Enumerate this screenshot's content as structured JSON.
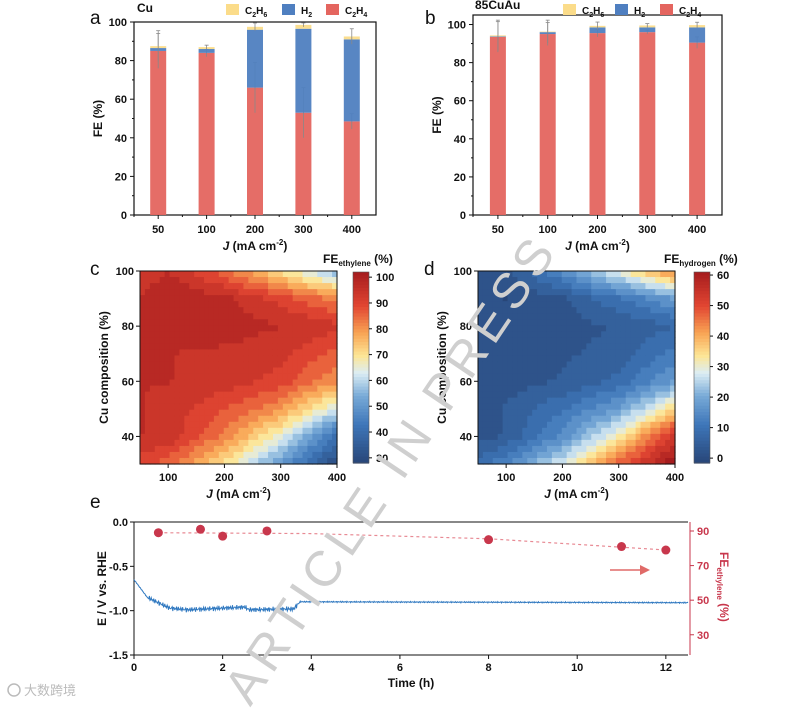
{
  "colors": {
    "c2h4": "#e4655f",
    "h2": "#4f7fc0",
    "c2h6": "#fbdc8a",
    "fe_red": "#c8374c",
    "line_blue": "#2f78c0"
  },
  "watermark": "ARTICLE IN PRESS",
  "logo_text": "大数跨境",
  "chart_data": [
    {
      "panel": "a",
      "type": "bar",
      "stacked": true,
      "title": "Cu",
      "categories": [
        "50",
        "100",
        "200",
        "300",
        "400"
      ],
      "xlabel_italic": "J",
      "xlabel_rest": " (mA cm",
      "xlabel_sup": "-2",
      "xlabel_end": ")",
      "ylabel": "FE (%)",
      "ylim": [
        0,
        100
      ],
      "yticks": [
        0,
        20,
        40,
        60,
        80,
        100
      ],
      "legend": [
        {
          "key": "c2h6",
          "main": "C",
          "s1": "2",
          "mid": "H",
          "s2": "6"
        },
        {
          "key": "h2",
          "main": "H",
          "s1": "2",
          "mid": "",
          "s2": ""
        },
        {
          "key": "c2h4",
          "main": "C",
          "s1": "2",
          "mid": "H",
          "s2": "4"
        }
      ],
      "series": [
        {
          "name": "C2H4",
          "key": "c2h4",
          "values": [
            85,
            84,
            66,
            53,
            48.5
          ],
          "err": [
            9,
            2,
            13,
            13,
            4
          ]
        },
        {
          "name": "H2",
          "key": "h2",
          "values": [
            1.5,
            2,
            30,
            43.5,
            42.5
          ],
          "err": [
            0,
            0,
            0,
            0,
            0
          ]
        },
        {
          "name": "C2H6",
          "key": "c2h6",
          "values": [
            1,
            1,
            1.5,
            2,
            1.5
          ],
          "err": [
            8,
            1,
            2,
            1,
            4
          ]
        }
      ]
    },
    {
      "panel": "b",
      "type": "bar",
      "stacked": true,
      "title": "85CuAu",
      "categories": [
        "50",
        "100",
        "200",
        "300",
        "400"
      ],
      "xlabel_italic": "J",
      "xlabel_rest": " (mA cm",
      "xlabel_sup": "-2",
      "xlabel_end": ")",
      "ylabel": "FE (%)",
      "ylim": [
        0,
        105
      ],
      "yticks": [
        0,
        20,
        40,
        60,
        80,
        100
      ],
      "legend": [
        {
          "key": "c2h6",
          "main": "C",
          "s1": "2",
          "mid": "H",
          "s2": "6"
        },
        {
          "key": "h2",
          "main": "H",
          "s1": "2",
          "mid": "",
          "s2": ""
        },
        {
          "key": "c2h4",
          "main": "C",
          "s1": "2",
          "mid": "H",
          "s2": "4"
        }
      ],
      "series": [
        {
          "name": "C2H4",
          "key": "c2h4",
          "values": [
            93.5,
            95,
            95.5,
            96,
            90.5
          ],
          "err": [
            8,
            6,
            2,
            1,
            3
          ]
        },
        {
          "name": "H2",
          "key": "h2",
          "values": [
            0.3,
            1,
            3,
            2.5,
            8
          ],
          "err": [
            0,
            0,
            0,
            0,
            0
          ]
        },
        {
          "name": "C2H6",
          "key": "c2h6",
          "values": [
            0.5,
            0.3,
            0.8,
            1,
            1.2
          ],
          "err": [
            8,
            6,
            2,
            1,
            1.5
          ]
        }
      ]
    },
    {
      "panel": "c",
      "type": "heatmap",
      "style": "contour",
      "xlabel_italic": "J",
      "xlabel_rest": " (mA cm",
      "xlabel_sup": "-2",
      "xlabel_end": ")",
      "ylabel": "Cu composition (%)",
      "colorbar_title": {
        "main": "FE",
        "sub": "ethylene",
        "end": " (%)"
      },
      "x": [
        50,
        100,
        200,
        300,
        400
      ],
      "y": [
        30,
        40,
        50,
        60,
        70,
        80,
        90,
        100
      ],
      "xlim": [
        50,
        400
      ],
      "ylim": [
        30,
        100
      ],
      "xticks": [
        100,
        200,
        300,
        400
      ],
      "yticks": [
        40,
        60,
        80,
        100
      ],
      "zlim": [
        28,
        102
      ],
      "zticks": [
        30,
        40,
        50,
        60,
        70,
        80,
        90,
        100
      ],
      "z": [
        [
          90,
          85,
          70,
          50,
          30
        ],
        [
          96,
          95,
          82,
          65,
          40
        ],
        [
          96,
          94,
          88,
          80,
          62
        ],
        [
          96,
          96,
          94,
          90,
          80
        ],
        [
          96,
          96,
          95,
          93,
          86
        ],
        [
          96,
          97,
          98,
          96,
          93
        ],
        [
          96,
          100,
          97,
          90,
          82
        ],
        [
          92,
          96,
          85,
          70,
          55
        ]
      ]
    },
    {
      "panel": "d",
      "type": "heatmap",
      "style": "contour",
      "xlabel_italic": "J",
      "xlabel_rest": " (mA cm",
      "xlabel_sup": "-2",
      "xlabel_end": ")",
      "ylabel": "Cu composition (%)",
      "colorbar_title": {
        "main": "FE",
        "sub": "hydrogen",
        "end": " (%)"
      },
      "x": [
        50,
        100,
        200,
        300,
        400
      ],
      "y": [
        30,
        40,
        50,
        60,
        70,
        80,
        90,
        100
      ],
      "xlim": [
        50,
        400
      ],
      "ylim": [
        30,
        100
      ],
      "xticks": [
        100,
        200,
        300,
        400
      ],
      "yticks": [
        40,
        60,
        80,
        100
      ],
      "zlim": [
        -1.6,
        61
      ],
      "zticks": [
        0,
        10,
        20,
        30,
        40,
        50,
        60
      ],
      "z": [
        [
          8,
          14,
          28,
          48,
          62
        ],
        [
          2,
          4,
          15,
          32,
          55
        ],
        [
          2,
          4,
          10,
          18,
          35
        ],
        [
          1,
          2,
          4,
          8,
          18
        ],
        [
          1,
          1,
          3,
          5,
          12
        ],
        [
          1,
          1,
          2,
          4,
          7
        ],
        [
          1,
          0,
          3,
          10,
          18
        ],
        [
          2,
          2,
          15,
          30,
          45
        ]
      ]
    },
    {
      "panel": "e",
      "type": "line",
      "xlabel": "Time (h)",
      "ylabel": "E / V vs. RHE",
      "y2label": {
        "main": "FE",
        "sub": "ethylene",
        "end": " (%)"
      },
      "xlim": [
        0,
        12.5
      ],
      "ylim": [
        -1.5,
        0
      ],
      "y2lim": [
        18.3,
        95.2
      ],
      "xticks": [
        0,
        2,
        4,
        6,
        8,
        10,
        12
      ],
      "yticks": [
        "0.0",
        "-0.5",
        "-1.0",
        "-1.5"
      ],
      "y2ticks": [
        30,
        50,
        70,
        90
      ],
      "potential": {
        "x": [
          0,
          0.3,
          0.8,
          1.2,
          2.5,
          2.6,
          3.6,
          3.75,
          12.5
        ],
        "y": [
          -0.65,
          -0.85,
          -0.97,
          -0.99,
          -0.96,
          -0.99,
          -0.98,
          -0.9,
          -0.91
        ]
      },
      "fe_ethylene": {
        "x": [
          0.55,
          1.5,
          2,
          3,
          8,
          11,
          12
        ],
        "y": [
          89,
          91,
          87,
          90,
          85,
          81,
          79
        ]
      },
      "fe_trend": {
        "x": [
          0.55,
          4,
          8,
          12
        ],
        "y": [
          89,
          88.5,
          85.5,
          79
        ]
      }
    }
  ]
}
